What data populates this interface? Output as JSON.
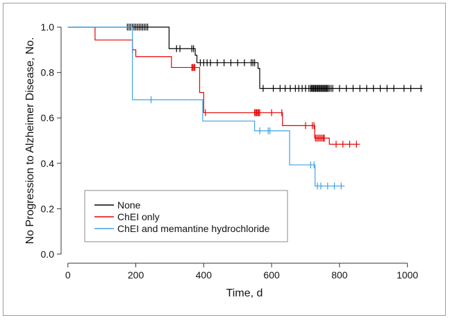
{
  "chart_data": {
    "type": "line",
    "xlabel": "Time, d",
    "ylabel": "No Progression to Alzheimer Disease, No.",
    "xlim": [
      -20,
      1060
    ],
    "ylim": [
      -0.04,
      1.04
    ],
    "xticks": [
      0,
      200,
      400,
      600,
      800,
      1000
    ],
    "yticks": [
      0.0,
      0.2,
      0.4,
      0.6,
      0.8,
      1.0
    ],
    "ytick_labels": [
      "0.0",
      "0.2",
      "0.4",
      "0.6",
      "0.8",
      "1.0"
    ],
    "legend_position": "bottom-left",
    "series": [
      {
        "name": "None",
        "color": "#000000",
        "steps": [
          [
            0,
            1.0
          ],
          [
            175,
            1.0
          ],
          [
            298,
            0.905
          ],
          [
            365,
            0.905
          ],
          [
            375,
            0.876
          ],
          [
            380,
            0.843
          ],
          [
            553,
            0.843
          ],
          [
            560,
            0.818
          ],
          [
            565,
            0.73
          ],
          [
            1045,
            0.73
          ]
        ],
        "censor_x": [
          175,
          180,
          185,
          190,
          195,
          200,
          205,
          210,
          215,
          220,
          225,
          230,
          235,
          320,
          330,
          365,
          370,
          390,
          400,
          410,
          420,
          440,
          460,
          480,
          500,
          520,
          540,
          545,
          550,
          575,
          605,
          625,
          640,
          655,
          670,
          680,
          690,
          700,
          710,
          715,
          718,
          721,
          724,
          727,
          730,
          733,
          736,
          739,
          742,
          745,
          748,
          751,
          754,
          757,
          760,
          763,
          766,
          770,
          775,
          780,
          800,
          820,
          840,
          860,
          880,
          900,
          920,
          940,
          960,
          990,
          1010,
          1040
        ]
      },
      {
        "name": "ChEI only",
        "color": "#e60000",
        "steps": [
          [
            0,
            1.0
          ],
          [
            78,
            1.0
          ],
          [
            80,
            0.943
          ],
          [
            182,
            0.943
          ],
          [
            190,
            0.9
          ],
          [
            200,
            0.87
          ],
          [
            300,
            0.87
          ],
          [
            305,
            0.822
          ],
          [
            375,
            0.822
          ],
          [
            388,
            0.712
          ],
          [
            400,
            0.623
          ],
          [
            615,
            0.623
          ],
          [
            632,
            0.566
          ],
          [
            720,
            0.566
          ],
          [
            727,
            0.511
          ],
          [
            760,
            0.511
          ],
          [
            770,
            0.484
          ],
          [
            860,
            0.484
          ]
        ],
        "censor_x": [
          190,
          365,
          368,
          371,
          374,
          405,
          550,
          553,
          556,
          559,
          562,
          565,
          600,
          630,
          700,
          720,
          725,
          729,
          733,
          737,
          741,
          745,
          749,
          753,
          755,
          790,
          810,
          830,
          850
        ]
      },
      {
        "name": "ChEI and memantine hydrochloride",
        "color": "#3ea0e4",
        "steps": [
          [
            0,
            1.0
          ],
          [
            185,
            1.0
          ],
          [
            190,
            0.68
          ],
          [
            392,
            0.68
          ],
          [
            397,
            0.586
          ],
          [
            545,
            0.586
          ],
          [
            550,
            0.543
          ],
          [
            648,
            0.543
          ],
          [
            653,
            0.393
          ],
          [
            722,
            0.393
          ],
          [
            728,
            0.3
          ],
          [
            815,
            0.3
          ]
        ],
        "censor_x": [
          245,
          565,
          590,
          595,
          715,
          725,
          735,
          745,
          765,
          785,
          805
        ]
      }
    ]
  }
}
